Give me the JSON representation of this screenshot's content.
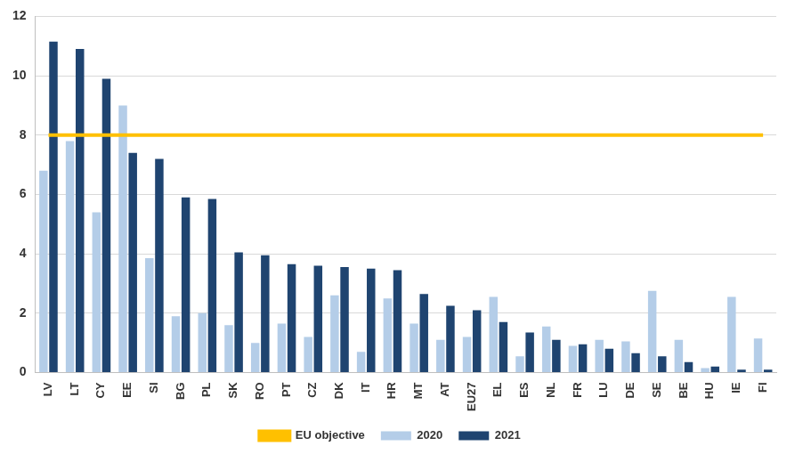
{
  "chart_data": {
    "type": "bar",
    "categories": [
      "LV",
      "LT",
      "CY",
      "EE",
      "SI",
      "BG",
      "PL",
      "SK",
      "RO",
      "PT",
      "CZ",
      "DK",
      "IT",
      "HR",
      "MT",
      "AT",
      "EU27",
      "EL",
      "ES",
      "NL",
      "FR",
      "LU",
      "DE",
      "SE",
      "BE",
      "HU",
      "IE",
      "FI"
    ],
    "series": [
      {
        "name": "2020",
        "color": "#b4cde8",
        "values": [
          6.8,
          7.8,
          5.4,
          9.0,
          3.85,
          1.9,
          2.0,
          1.6,
          1.0,
          1.65,
          1.2,
          2.6,
          0.7,
          2.5,
          1.65,
          1.1,
          1.2,
          2.55,
          0.55,
          1.55,
          0.9,
          1.1,
          1.05,
          2.75,
          1.1,
          0.15,
          2.55,
          1.15
        ]
      },
      {
        "name": "2021",
        "color": "#1f4470",
        "values": [
          11.15,
          10.9,
          9.9,
          7.4,
          7.2,
          5.9,
          5.85,
          4.05,
          3.95,
          3.65,
          3.6,
          3.55,
          3.5,
          3.45,
          2.65,
          2.25,
          2.1,
          1.7,
          1.35,
          1.1,
          0.95,
          0.8,
          0.65,
          0.55,
          0.35,
          0.2,
          0.1,
          0.1
        ]
      },
      {
        "name": "EU objective",
        "color": "#ffc000",
        "type": "line",
        "values": [
          8,
          8,
          8,
          8,
          8,
          8,
          8,
          8,
          8,
          8,
          8,
          8,
          8,
          8,
          8,
          8,
          8,
          8,
          8,
          8,
          8,
          8,
          8,
          8,
          8,
          8,
          8,
          8
        ]
      }
    ],
    "ylim": [
      0,
      12
    ],
    "yticks": [
      0,
      2,
      4,
      6,
      8,
      10,
      12
    ],
    "grid": true,
    "legend": "bottom"
  }
}
